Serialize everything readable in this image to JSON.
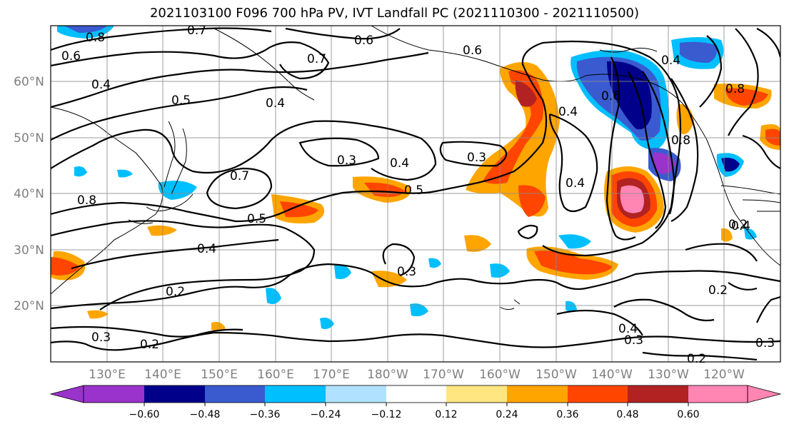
{
  "title": "2021103100 F096 700 hPa PV, IVT Landfall PC (2021110300 - 2021110500)",
  "lat_labels": [
    "60°N",
    "50°N",
    "40°N",
    "30°N",
    "20°N"
  ],
  "lon_labels": [
    "130°E",
    "140°E",
    "150°E",
    "160°E",
    "170°E",
    "180°W",
    "170°W",
    "160°W",
    "150°W",
    "140°W",
    "130°W",
    "120°W"
  ],
  "colorbar": {
    "colors": [
      "#9933cc",
      "#00008b",
      "#3a5bd0",
      "#00bfff",
      "#b0e2ff",
      "#ffffff",
      "#ffe680",
      "#ffa500",
      "#ff4500",
      "#b22222",
      "#ff85b3"
    ],
    "ticks": [
      "−0.60",
      "−0.48",
      "−0.36",
      "−0.24",
      "−0.12",
      "0.12",
      "0.24",
      "0.36",
      "0.48",
      "0.60"
    ]
  },
  "contour_labels": [
    "0.8",
    "0.7",
    "0.6",
    "0.7",
    "0.6",
    "0.4",
    "0.5",
    "0.4",
    "0.6",
    "0.8",
    "0.3",
    "0.4",
    "0.3",
    "0.5",
    "0.7",
    "0.5",
    "0.4",
    "0.6",
    "0.4",
    "0.8",
    "0.2",
    "0.3",
    "0.4",
    "0.3",
    "0.2",
    "0.2",
    "0.2",
    "0.4",
    "0.2",
    "0.3",
    "0.3",
    "0.8",
    "0.4",
    "0.4"
  ]
}
